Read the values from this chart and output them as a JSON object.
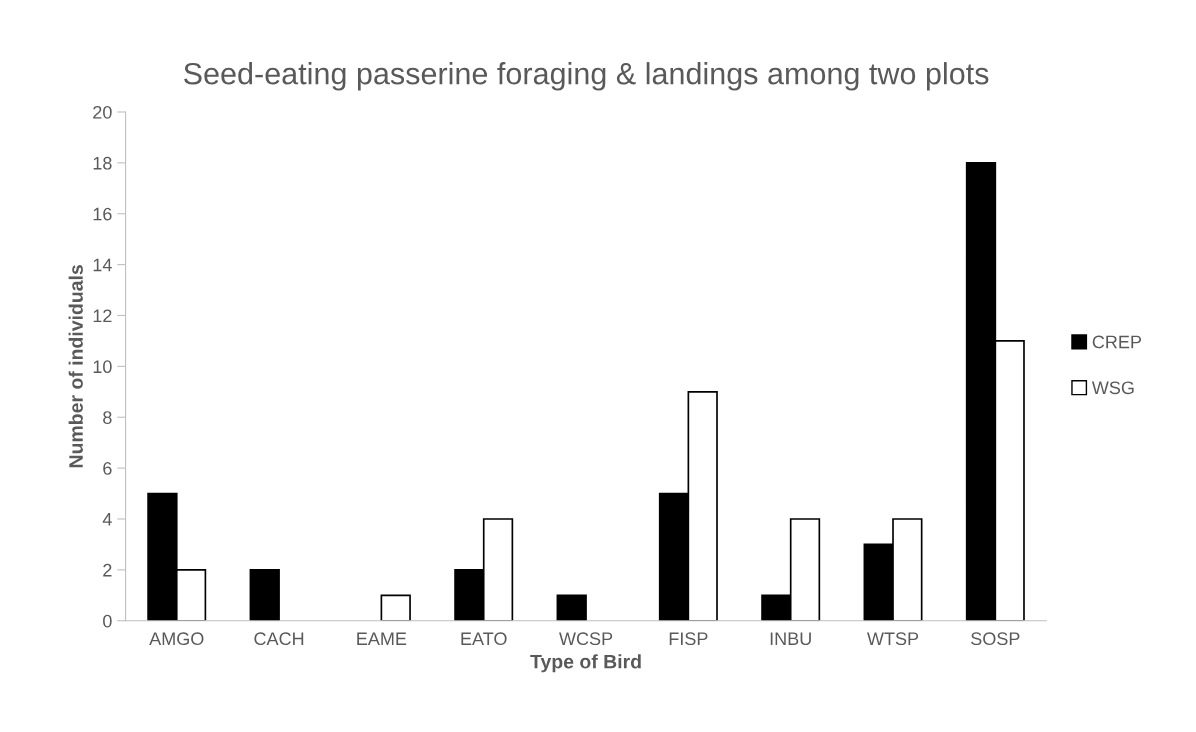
{
  "chart_data": {
    "type": "bar",
    "title": "Seed-eating passerine foraging & landings among two plots",
    "xlabel": "Type of Bird",
    "ylabel": "Number of individuals",
    "categories": [
      "AMGO",
      "CACH",
      "EAME",
      "EATO",
      "WCSP",
      "FISP",
      "INBU",
      "WTSP",
      "SOSP"
    ],
    "series": [
      {
        "name": "CREP",
        "color": "#000000",
        "values": [
          5,
          2,
          0,
          2,
          1,
          5,
          1,
          3,
          18
        ]
      },
      {
        "name": "WSG",
        "color": "#ffffff",
        "values": [
          2,
          0,
          1,
          4,
          0,
          9,
          4,
          4,
          11
        ]
      }
    ],
    "ylim": [
      0,
      20
    ],
    "yticks": [
      0,
      2,
      4,
      6,
      8,
      10,
      12,
      14,
      16,
      18,
      20
    ],
    "grid": false,
    "legend": "right"
  }
}
